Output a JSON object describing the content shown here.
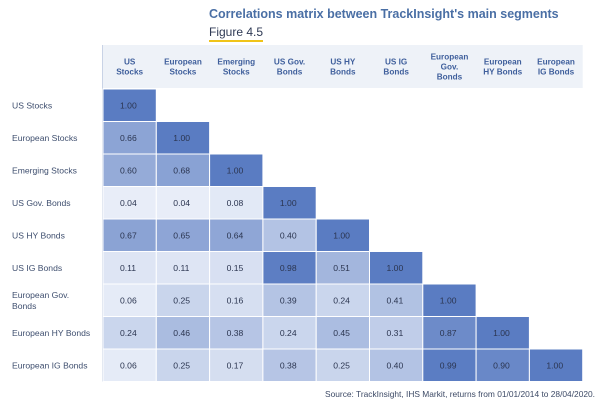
{
  "title": "Correlations matrix between TrackInsight's main segments",
  "subtitle": "Figure 4.5",
  "source": "Source: TrackInsight, IHS Markit, returns from 01/01/2014 to 28/04/2020.",
  "colors": {
    "cell_min": "#eef2fa",
    "cell_max": "#5a7cc2",
    "header_bg": "#eef2f8",
    "header_text": "#3f5f9c",
    "title": "#4a6fa5",
    "underline": "#f0c419"
  },
  "chart_data": {
    "type": "heatmap",
    "columns": [
      [
        "US",
        "Stocks"
      ],
      [
        "European",
        "Stocks"
      ],
      [
        "Emerging",
        "Stocks"
      ],
      [
        "US Gov.",
        "Bonds"
      ],
      [
        "US HY",
        "Bonds"
      ],
      [
        "US IG",
        "Bonds"
      ],
      [
        "European",
        "Gov.",
        "Bonds"
      ],
      [
        "European",
        "HY Bonds"
      ],
      [
        "European",
        "IG Bonds"
      ]
    ],
    "rows": [
      [
        "US Stocks"
      ],
      [
        "European Stocks"
      ],
      [
        "Emerging Stocks"
      ],
      [
        "US Gov. Bonds"
      ],
      [
        "US HY Bonds"
      ],
      [
        "US IG Bonds"
      ],
      [
        "European Gov.",
        "Bonds"
      ],
      [
        "European HY Bonds"
      ],
      [
        "European IG Bonds"
      ]
    ],
    "values": [
      [
        "1.00"
      ],
      [
        "0.66",
        "1.00"
      ],
      [
        "0.60",
        "0.68",
        "1.00"
      ],
      [
        "0.04",
        "0.04",
        "0.08",
        "1.00"
      ],
      [
        "0.67",
        "0.65",
        "0.64",
        "0.40",
        "1.00"
      ],
      [
        "0.11",
        "0.11",
        "0.15",
        "0.98",
        "0.51",
        "1.00"
      ],
      [
        "0.06",
        "0.25",
        "0.16",
        "0.39",
        "0.24",
        "0.41",
        "1.00"
      ],
      [
        "0.24",
        "0.46",
        "0.38",
        "0.24",
        "0.45",
        "0.31",
        "0.87",
        "1.00"
      ],
      [
        "0.06",
        "0.25",
        "0.17",
        "0.38",
        "0.25",
        "0.40",
        "0.99",
        "0.90",
        "1.00"
      ]
    ],
    "value_range": [
      0,
      1
    ],
    "grid": false,
    "legend": "none"
  }
}
